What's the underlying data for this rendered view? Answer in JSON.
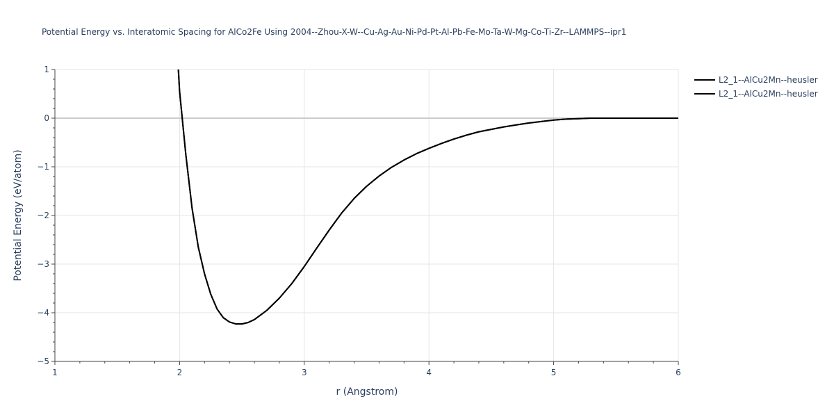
{
  "chart_data": {
    "type": "line",
    "title": "Potential Energy vs. Interatomic Spacing for AlCo2Fe Using 2004--Zhou-X-W--Cu-Ag-Au-Ni-Pd-Pt-Al-Pb-Fe-Mo-Ta-W-Mg-Co-Ti-Zr--LAMMPS--ipr1",
    "xlabel": "r (Angstrom)",
    "ylabel": "Potential Energy (eV/atom)",
    "xlim": [
      1,
      6
    ],
    "ylim": [
      -5,
      1
    ],
    "x_ticks": [
      1,
      2,
      3,
      4,
      5,
      6
    ],
    "x_tick_labels": [
      "1",
      "2",
      "3",
      "4",
      "5",
      "6"
    ],
    "y_ticks": [
      -5,
      -4,
      -3,
      -2,
      -1,
      0,
      1
    ],
    "y_tick_labels": [
      "−5",
      "−4",
      "−3",
      "−2",
      "−1",
      "0",
      "1"
    ],
    "grid": true,
    "legend_placement": "top-right",
    "colors": {
      "line": "#000000",
      "grid": "#e5e5e5",
      "zeroline": "#cccccc",
      "text": "#2a3f5f",
      "axis": "#444444"
    },
    "series": [
      {
        "name": "L2_1--AlCu2Mn--heusler",
        "x": [
          1.99,
          2.0,
          2.05,
          2.1,
          2.15,
          2.2,
          2.25,
          2.3,
          2.35,
          2.4,
          2.45,
          2.5,
          2.55,
          2.6,
          2.7,
          2.8,
          2.9,
          3.0,
          3.1,
          3.2,
          3.3,
          3.4,
          3.5,
          3.6,
          3.7,
          3.8,
          3.9,
          4.0,
          4.1,
          4.2,
          4.3,
          4.4,
          4.5,
          4.6,
          4.7,
          4.8,
          4.9,
          5.0,
          5.1,
          5.2,
          5.3,
          5.4,
          5.5,
          5.6,
          5.8,
          6.0
        ],
        "y": [
          1.0,
          0.55,
          -0.75,
          -1.85,
          -2.65,
          -3.2,
          -3.62,
          -3.92,
          -4.1,
          -4.19,
          -4.23,
          -4.23,
          -4.2,
          -4.14,
          -3.95,
          -3.7,
          -3.4,
          -3.05,
          -2.67,
          -2.3,
          -1.95,
          -1.65,
          -1.4,
          -1.19,
          -1.01,
          -0.86,
          -0.73,
          -0.62,
          -0.52,
          -0.43,
          -0.35,
          -0.28,
          -0.23,
          -0.18,
          -0.14,
          -0.1,
          -0.07,
          -0.04,
          -0.02,
          -0.01,
          0.0,
          0.0,
          0.0,
          0.0,
          0.0,
          0.0
        ]
      },
      {
        "name": "L2_1--AlCu2Mn--heusler",
        "x": [
          1.99,
          2.0,
          2.05,
          2.1,
          2.15,
          2.2,
          2.25,
          2.3,
          2.35,
          2.4,
          2.45,
          2.5,
          2.55,
          2.6,
          2.7,
          2.8,
          2.9,
          3.0,
          3.1,
          3.2,
          3.3,
          3.4,
          3.5,
          3.6,
          3.7,
          3.8,
          3.9,
          4.0,
          4.1,
          4.2,
          4.3,
          4.4,
          4.5,
          4.6,
          4.7,
          4.8,
          4.9,
          5.0,
          5.1,
          5.2,
          5.3,
          5.4,
          5.5,
          5.6,
          5.8,
          6.0
        ],
        "y": [
          1.0,
          0.55,
          -0.75,
          -1.85,
          -2.65,
          -3.2,
          -3.62,
          -3.92,
          -4.1,
          -4.19,
          -4.23,
          -4.23,
          -4.2,
          -4.14,
          -3.95,
          -3.7,
          -3.4,
          -3.05,
          -2.67,
          -2.3,
          -1.95,
          -1.65,
          -1.4,
          -1.19,
          -1.01,
          -0.86,
          -0.73,
          -0.62,
          -0.52,
          -0.43,
          -0.35,
          -0.28,
          -0.23,
          -0.18,
          -0.14,
          -0.1,
          -0.07,
          -0.04,
          -0.02,
          -0.01,
          0.0,
          0.0,
          0.0,
          0.0,
          0.0,
          0.0
        ]
      }
    ]
  }
}
